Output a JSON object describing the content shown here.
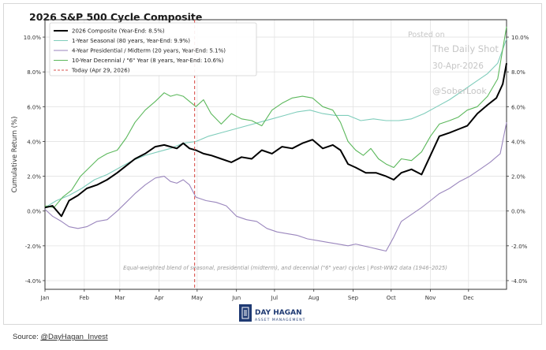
{
  "chart_data": {
    "type": "line",
    "title": "2026 S&P 500 Cycle Composite",
    "ylabel": "Cumulative Return (%)",
    "xlabel": "",
    "ylim": [
      -4.5,
      11.0
    ],
    "yticks": [
      -4,
      -2,
      0,
      2,
      4,
      6,
      8,
      10
    ],
    "ytick_labels": [
      "-4.0%",
      "-2.0%",
      "0.0%",
      "2.0%",
      "4.0%",
      "6.0%",
      "8.0%",
      "10.0%"
    ],
    "xlim": [
      1,
      365
    ],
    "months": [
      {
        "label": "Jan",
        "day": 1
      },
      {
        "label": "Feb",
        "day": 32
      },
      {
        "label": "Mar",
        "day": 60
      },
      {
        "label": "Apr",
        "day": 91
      },
      {
        "label": "May",
        "day": 121
      },
      {
        "label": "Jun",
        "day": 152
      },
      {
        "label": "Jul",
        "day": 182
      },
      {
        "label": "Aug",
        "day": 213
      },
      {
        "label": "Sep",
        "day": 244
      },
      {
        "label": "Oct",
        "day": 274
      },
      {
        "label": "Nov",
        "day": 305
      },
      {
        "label": "Dec",
        "day": 335
      }
    ],
    "grid": true,
    "legend_position": "top-left",
    "today_marker": {
      "day": 119,
      "label": "Today (Apr 29, 2026)",
      "color": "#d9534f"
    },
    "series": [
      {
        "name": "2026 Composite (Year-End: 8.5%)",
        "color": "#000000",
        "points": [
          [
            1,
            0.2
          ],
          [
            7,
            0.3
          ],
          [
            14,
            -0.3
          ],
          [
            20,
            0.6
          ],
          [
            27,
            0.9
          ],
          [
            34,
            1.3
          ],
          [
            42,
            1.5
          ],
          [
            50,
            1.8
          ],
          [
            58,
            2.2
          ],
          [
            65,
            2.6
          ],
          [
            72,
            3.0
          ],
          [
            80,
            3.3
          ],
          [
            88,
            3.7
          ],
          [
            95,
            3.8
          ],
          [
            100,
            3.7
          ],
          [
            105,
            3.6
          ],
          [
            110,
            3.9
          ],
          [
            115,
            3.6
          ],
          [
            120,
            3.5
          ],
          [
            126,
            3.3
          ],
          [
            132,
            3.2
          ],
          [
            140,
            3.0
          ],
          [
            148,
            2.8
          ],
          [
            156,
            3.1
          ],
          [
            164,
            3.0
          ],
          [
            172,
            3.5
          ],
          [
            180,
            3.3
          ],
          [
            188,
            3.7
          ],
          [
            196,
            3.6
          ],
          [
            204,
            3.9
          ],
          [
            212,
            4.1
          ],
          [
            220,
            3.6
          ],
          [
            228,
            3.8
          ],
          [
            234,
            3.5
          ],
          [
            240,
            2.7
          ],
          [
            246,
            2.5
          ],
          [
            254,
            2.2
          ],
          [
            262,
            2.2
          ],
          [
            270,
            2.0
          ],
          [
            276,
            1.8
          ],
          [
            282,
            2.2
          ],
          [
            290,
            2.4
          ],
          [
            298,
            2.1
          ],
          [
            305,
            3.2
          ],
          [
            312,
            4.3
          ],
          [
            320,
            4.5
          ],
          [
            327,
            4.7
          ],
          [
            334,
            4.9
          ],
          [
            342,
            5.6
          ],
          [
            350,
            6.1
          ],
          [
            357,
            6.5
          ],
          [
            362,
            7.3
          ],
          [
            365,
            8.5
          ]
        ]
      },
      {
        "name": "1-Year Seasonal (80 years, Year-End: 9.9%)",
        "color": "#7fcdbb",
        "points": [
          [
            1,
            0.2
          ],
          [
            10,
            0.6
          ],
          [
            20,
            0.9
          ],
          [
            30,
            1.3
          ],
          [
            40,
            1.8
          ],
          [
            50,
            2.1
          ],
          [
            60,
            2.5
          ],
          [
            70,
            2.9
          ],
          [
            80,
            3.2
          ],
          [
            90,
            3.4
          ],
          [
            100,
            3.6
          ],
          [
            110,
            3.9
          ],
          [
            120,
            4.0
          ],
          [
            130,
            4.3
          ],
          [
            140,
            4.5
          ],
          [
            150,
            4.7
          ],
          [
            160,
            4.9
          ],
          [
            170,
            5.1
          ],
          [
            180,
            5.3
          ],
          [
            190,
            5.5
          ],
          [
            200,
            5.7
          ],
          [
            210,
            5.8
          ],
          [
            220,
            5.6
          ],
          [
            230,
            5.5
          ],
          [
            240,
            5.5
          ],
          [
            250,
            5.2
          ],
          [
            260,
            5.3
          ],
          [
            270,
            5.2
          ],
          [
            280,
            5.2
          ],
          [
            290,
            5.3
          ],
          [
            300,
            5.6
          ],
          [
            310,
            6.0
          ],
          [
            320,
            6.4
          ],
          [
            330,
            6.9
          ],
          [
            340,
            7.4
          ],
          [
            350,
            7.9
          ],
          [
            358,
            8.5
          ],
          [
            365,
            9.9
          ]
        ]
      },
      {
        "name": "4-Year Presidential / Midterm (20 years, Year-End: 5.1%)",
        "color": "#9a86bd",
        "points": [
          [
            1,
            0.1
          ],
          [
            7,
            -0.3
          ],
          [
            14,
            -0.6
          ],
          [
            20,
            -0.9
          ],
          [
            27,
            -1.0
          ],
          [
            34,
            -0.9
          ],
          [
            42,
            -0.6
          ],
          [
            50,
            -0.5
          ],
          [
            58,
            0.0
          ],
          [
            65,
            0.5
          ],
          [
            72,
            1.0
          ],
          [
            80,
            1.5
          ],
          [
            88,
            1.9
          ],
          [
            95,
            2.0
          ],
          [
            100,
            1.7
          ],
          [
            105,
            1.6
          ],
          [
            110,
            1.8
          ],
          [
            115,
            1.5
          ],
          [
            120,
            0.8
          ],
          [
            128,
            0.6
          ],
          [
            136,
            0.5
          ],
          [
            144,
            0.3
          ],
          [
            152,
            -0.3
          ],
          [
            160,
            -0.5
          ],
          [
            168,
            -0.6
          ],
          [
            176,
            -1.0
          ],
          [
            184,
            -1.2
          ],
          [
            192,
            -1.3
          ],
          [
            200,
            -1.4
          ],
          [
            208,
            -1.6
          ],
          [
            216,
            -1.7
          ],
          [
            224,
            -1.8
          ],
          [
            232,
            -1.9
          ],
          [
            240,
            -2.0
          ],
          [
            246,
            -1.9
          ],
          [
            252,
            -2.0
          ],
          [
            258,
            -2.1
          ],
          [
            264,
            -2.2
          ],
          [
            270,
            -2.3
          ],
          [
            276,
            -1.5
          ],
          [
            282,
            -0.6
          ],
          [
            290,
            -0.2
          ],
          [
            298,
            0.2
          ],
          [
            305,
            0.6
          ],
          [
            312,
            1.0
          ],
          [
            320,
            1.3
          ],
          [
            328,
            1.7
          ],
          [
            336,
            2.0
          ],
          [
            344,
            2.4
          ],
          [
            352,
            2.8
          ],
          [
            360,
            3.3
          ],
          [
            365,
            5.1
          ]
        ]
      },
      {
        "name": "10-Year Decennial / \"6\" Year (8 years, Year-End: 10.6%)",
        "color": "#5cb85c",
        "points": [
          [
            1,
            0.3
          ],
          [
            8,
            0.2
          ],
          [
            15,
            0.8
          ],
          [
            22,
            1.2
          ],
          [
            29,
            2.0
          ],
          [
            36,
            2.5
          ],
          [
            43,
            3.0
          ],
          [
            50,
            3.3
          ],
          [
            58,
            3.5
          ],
          [
            65,
            4.2
          ],
          [
            72,
            5.1
          ],
          [
            80,
            5.8
          ],
          [
            88,
            6.3
          ],
          [
            95,
            6.8
          ],
          [
            100,
            6.6
          ],
          [
            105,
            6.7
          ],
          [
            110,
            6.6
          ],
          [
            115,
            6.3
          ],
          [
            120,
            6.0
          ],
          [
            126,
            6.4
          ],
          [
            132,
            5.6
          ],
          [
            140,
            5.0
          ],
          [
            148,
            5.6
          ],
          [
            156,
            5.3
          ],
          [
            164,
            5.2
          ],
          [
            172,
            4.9
          ],
          [
            180,
            5.8
          ],
          [
            188,
            6.2
          ],
          [
            196,
            6.5
          ],
          [
            204,
            6.6
          ],
          [
            212,
            6.5
          ],
          [
            220,
            6.0
          ],
          [
            228,
            5.8
          ],
          [
            234,
            5.1
          ],
          [
            240,
            4.0
          ],
          [
            246,
            3.5
          ],
          [
            252,
            3.2
          ],
          [
            258,
            3.6
          ],
          [
            264,
            3.0
          ],
          [
            270,
            2.7
          ],
          [
            276,
            2.5
          ],
          [
            282,
            3.0
          ],
          [
            290,
            2.9
          ],
          [
            298,
            3.4
          ],
          [
            305,
            4.3
          ],
          [
            312,
            5.0
          ],
          [
            320,
            5.2
          ],
          [
            327,
            5.4
          ],
          [
            334,
            5.8
          ],
          [
            342,
            6.0
          ],
          [
            350,
            6.6
          ],
          [
            358,
            7.6
          ],
          [
            365,
            10.6
          ]
        ]
      }
    ],
    "annotation": "Equal-weighted blend of seasonal, presidential (midterm), and decennial (\"6\" year) cycles | Post-WW2 data (1946–2025)"
  },
  "watermark": {
    "line1": "Posted on",
    "line2": "The Daily Shot",
    "line3": "30-Apr-2026",
    "line4": "@SoberLook"
  },
  "logo": {
    "brand": "DAY HAGAN",
    "sub": "ASSET MANAGEMENT"
  },
  "source": {
    "prefix": "Source: ",
    "link": "@DayHagan_Invest"
  }
}
